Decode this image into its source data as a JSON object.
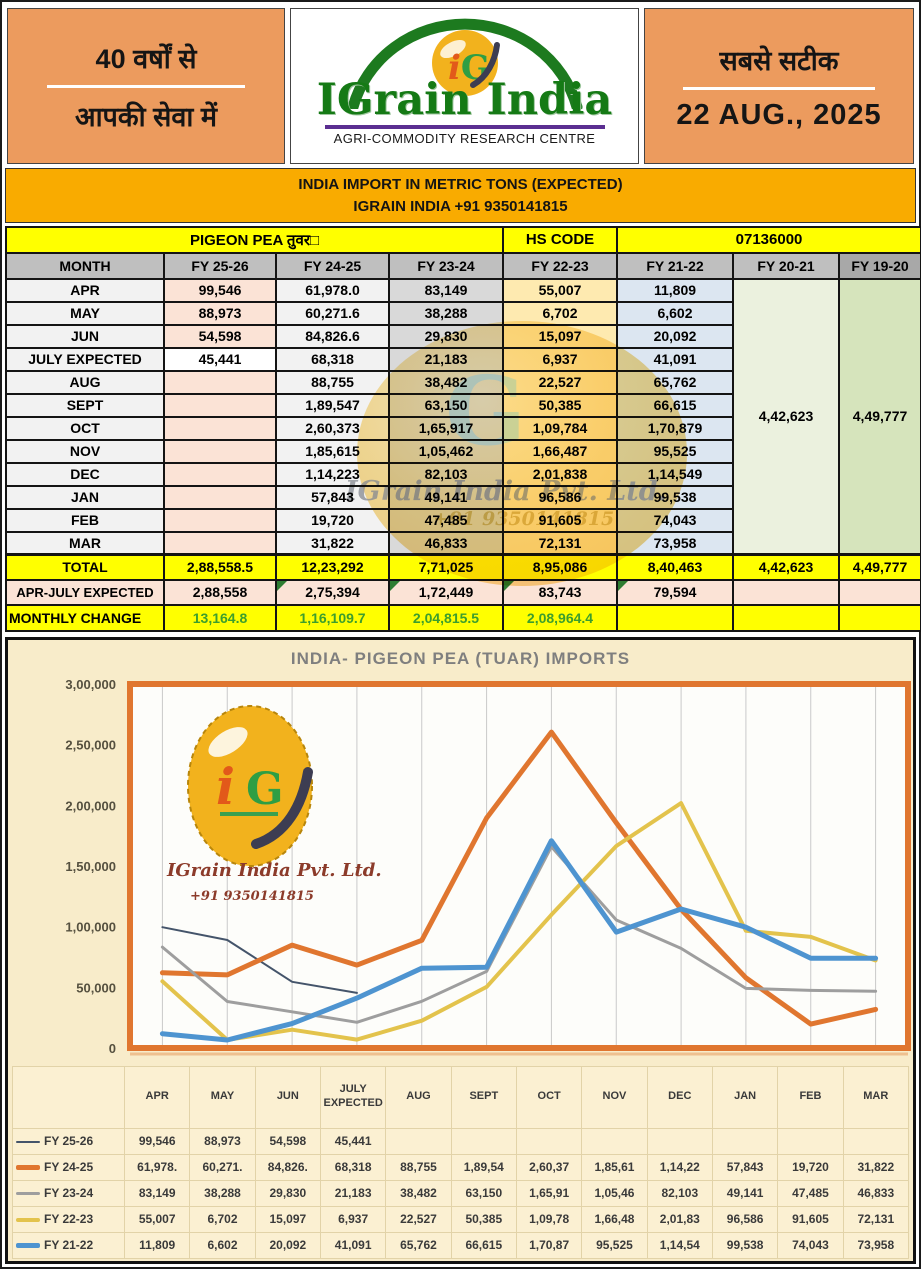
{
  "header": {
    "left_line1": "40 वर्षों से",
    "left_line2": "आपकी सेवा में",
    "logo_title": "IGrain India",
    "logo_monogram": "iG",
    "logo_subtitle": "AGRI-COMMODITY RESEARCH CENTRE",
    "right_line1": "सबसे सटीक",
    "right_date": "22 AUG., 2025"
  },
  "banner": {
    "line1": "INDIA IMPORT IN METRIC TONS (EXPECTED)",
    "line2": "IGRAIN INDIA +91 9350141815"
  },
  "table": {
    "commodity": "PIGEON PEA तुवर□",
    "hs_code_label": "HS CODE",
    "hs_code": "07136000",
    "columns": [
      "MONTH",
      "FY 25-26",
      "FY 24-25",
      "FY 23-24",
      "FY 22-23",
      "FY 21-22",
      "FY 20-21",
      "FY 19-20"
    ],
    "rows": [
      [
        "APR",
        "99,546",
        "61,978.0",
        "83,149",
        "55,007",
        "11,809"
      ],
      [
        "MAY",
        "88,973",
        "60,271.6",
        "38,288",
        "6,702",
        "6,602"
      ],
      [
        "JUN",
        "54,598",
        "84,826.6",
        "29,830",
        "15,097",
        "20,092"
      ],
      [
        "JULY EXPECTED",
        "45,441",
        "68,318",
        "21,183",
        "6,937",
        "41,091"
      ],
      [
        "AUG",
        "",
        "88,755",
        "38,482",
        "22,527",
        "65,762"
      ],
      [
        "SEPT",
        "",
        "1,89,547",
        "63,150",
        "50,385",
        "66,615"
      ],
      [
        "OCT",
        "",
        "2,60,373",
        "1,65,917",
        "1,09,784",
        "1,70,879"
      ],
      [
        "NOV",
        "",
        "1,85,615",
        "1,05,462",
        "1,66,487",
        "95,525"
      ],
      [
        "DEC",
        "",
        "1,14,223",
        "82,103",
        "2,01,838",
        "1,14,549"
      ],
      [
        "JAN",
        "",
        "57,843",
        "49,141",
        "96,586",
        "99,538"
      ],
      [
        "FEB",
        "",
        "19,720",
        "47,485",
        "91,605",
        "74,043"
      ],
      [
        "MAR",
        "",
        "31,822",
        "46,833",
        "72,131",
        "73,958"
      ]
    ],
    "fy2021_annual": "4,42,623",
    "fy1920_annual": "4,49,777",
    "total_row": {
      "label": "TOTAL",
      "values": [
        "2,88,558.5",
        "12,23,292",
        "7,71,025",
        "8,95,086",
        "8,40,463",
        "4,42,623",
        "4,49,777"
      ]
    },
    "apr_july_row": {
      "label": "APR-JULY EXPECTED",
      "values": [
        "2,88,558",
        "2,75,394",
        "1,72,449",
        "83,743",
        "79,594",
        "",
        ""
      ]
    },
    "monthly_change_row": {
      "label": "MONTHLY CHANGE",
      "values": [
        "13,164.8",
        "1,16,109.7",
        "2,04,815.5",
        "2,08,964.4",
        "",
        "",
        ""
      ]
    }
  },
  "watermark": {
    "company": "IGrain India Pvt. Ltd.",
    "phone": "+91 9350141815"
  },
  "chart_data": {
    "type": "line",
    "title": "INDIA-  PIGEON PEA (TUAR) IMPORTS",
    "categories": [
      "APR",
      "MAY",
      "JUN",
      "JULY EXPECTED",
      "AUG",
      "SEPT",
      "OCT",
      "NOV",
      "DEC",
      "JAN",
      "FEB",
      "MAR"
    ],
    "ylim": [
      0,
      300000
    ],
    "y_ticks": [
      "3,00,000",
      "2,50,000",
      "2,00,000",
      "1,50,000",
      "1,00,000",
      "50,000",
      "0"
    ],
    "grid": "vertical-category-lines",
    "legend_position": "bottom-table",
    "plot_border_color": "#e0762f",
    "series": [
      {
        "name": "FY 25-26",
        "color": "#44546a",
        "width": 2,
        "values": [
          99546,
          88973,
          54598,
          45441
        ],
        "display": [
          "99,546",
          "88,973",
          "54,598",
          "45,441",
          "",
          "",
          "",
          "",
          "",
          "",
          "",
          ""
        ]
      },
      {
        "name": "FY 24-25",
        "color": "#e0762f",
        "width": 5,
        "values": [
          61978,
          60271.6,
          84826.6,
          68318,
          88755,
          189547,
          260373,
          185615,
          114223,
          57843,
          19720,
          31822
        ],
        "display": [
          "61,978.",
          "60,271.",
          "84,826.",
          "68,318",
          "88,755",
          "1,89,54",
          "2,60,37",
          "1,85,61",
          "1,14,22",
          "57,843",
          "19,720",
          "31,822"
        ]
      },
      {
        "name": "FY 23-24",
        "color": "#9e9e9e",
        "width": 3,
        "values": [
          83149,
          38288,
          29830,
          21183,
          38482,
          63150,
          165917,
          105462,
          82103,
          49141,
          47485,
          46833
        ],
        "display": [
          "83,149",
          "38,288",
          "29,830",
          "21,183",
          "38,482",
          "63,150",
          "1,65,91",
          "1,05,46",
          "82,103",
          "49,141",
          "47,485",
          "46,833"
        ]
      },
      {
        "name": "FY 22-23",
        "color": "#e3c34c",
        "width": 4,
        "values": [
          55007,
          6702,
          15097,
          6937,
          22527,
          50385,
          109784,
          166487,
          201838,
          96586,
          91605,
          72131
        ],
        "display": [
          "55,007",
          "6,702",
          "15,097",
          "6,937",
          "22,527",
          "50,385",
          "1,09,78",
          "1,66,48",
          "2,01,83",
          "96,586",
          "91,605",
          "72,131"
        ]
      },
      {
        "name": "FY 21-22",
        "color": "#4e94d0",
        "width": 5,
        "values": [
          11809,
          6602,
          20092,
          41091,
          65762,
          66615,
          170879,
          95525,
          114549,
          99538,
          74043,
          73958
        ],
        "display": [
          "11,809",
          "6,602",
          "20,092",
          "41,091",
          "65,762",
          "66,615",
          "1,70,87",
          "95,525",
          "1,14,54",
          "99,538",
          "74,043",
          "73,958"
        ]
      }
    ]
  }
}
